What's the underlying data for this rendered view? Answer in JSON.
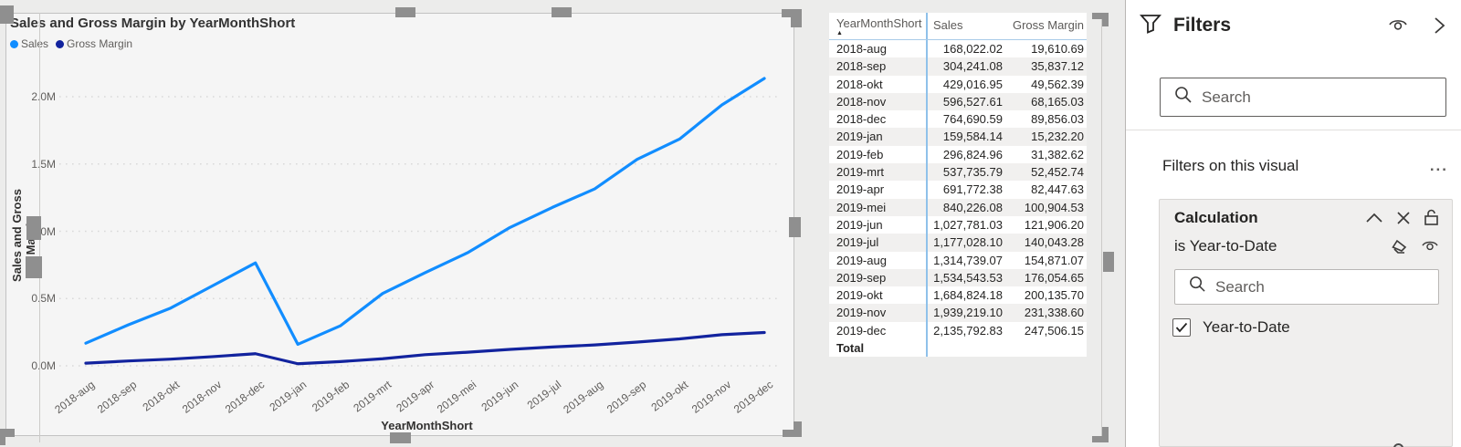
{
  "chart": {
    "title": "Sales and Gross Margin by YearMonthShort",
    "y_axis_title": "Sales and Gross Margin",
    "x_axis_title": "YearMonthShort",
    "y_ticks": [
      "0.0M",
      "0.5M",
      "1.0M",
      "1.5M",
      "2.0M"
    ]
  },
  "chart_data": {
    "type": "line",
    "title": "Sales and Gross Margin by YearMonthShort",
    "xlabel": "YearMonthShort",
    "ylabel": "Sales and Gross Margin",
    "categories": [
      "2018-aug",
      "2018-sep",
      "2018-okt",
      "2018-nov",
      "2018-dec",
      "2019-jan",
      "2019-feb",
      "2019-mrt",
      "2019-apr",
      "2019-mei",
      "2019-jun",
      "2019-jul",
      "2019-aug",
      "2019-sep",
      "2019-okt",
      "2019-nov",
      "2019-dec"
    ],
    "series": [
      {
        "name": "Sales",
        "color": "#118DFF",
        "values": [
          168022.02,
          304241.08,
          429016.95,
          596527.61,
          764690.59,
          159584.14,
          296824.96,
          537735.79,
          691772.38,
          840226.08,
          1027781.03,
          1177028.1,
          1314739.07,
          1534543.53,
          1684824.18,
          1939219.1,
          2135792.83
        ]
      },
      {
        "name": "Gross Margin",
        "color": "#12239E",
        "values": [
          19610.69,
          35837.12,
          49562.39,
          68165.03,
          89856.03,
          15232.2,
          31382.62,
          52452.74,
          82447.63,
          100904.53,
          121906.2,
          140043.28,
          154871.07,
          176054.65,
          200135.7,
          231338.6,
          247506.15
        ]
      }
    ],
    "ylim": [
      0,
      2200000
    ],
    "y_gridlines": [
      0,
      500000,
      1000000,
      1500000,
      2000000
    ],
    "grid": "dotted-horizontal",
    "legend_position": "top-left"
  },
  "table": {
    "columns": [
      "YearMonthShort",
      "Sales",
      "Gross Margin"
    ],
    "sort": {
      "column": "YearMonthShort",
      "direction": "ascending",
      "glyph": "▲"
    },
    "rows": [
      [
        "2018-aug",
        "168,022.02",
        "19,610.69"
      ],
      [
        "2018-sep",
        "304,241.08",
        "35,837.12"
      ],
      [
        "2018-okt",
        "429,016.95",
        "49,562.39"
      ],
      [
        "2018-nov",
        "596,527.61",
        "68,165.03"
      ],
      [
        "2018-dec",
        "764,690.59",
        "89,856.03"
      ],
      [
        "2019-jan",
        "159,584.14",
        "15,232.20"
      ],
      [
        "2019-feb",
        "296,824.96",
        "31,382.62"
      ],
      [
        "2019-mrt",
        "537,735.79",
        "52,452.74"
      ],
      [
        "2019-apr",
        "691,772.38",
        "82,447.63"
      ],
      [
        "2019-mei",
        "840,226.08",
        "100,904.53"
      ],
      [
        "2019-jun",
        "1,027,781.03",
        "121,906.20"
      ],
      [
        "2019-jul",
        "1,177,028.10",
        "140,043.28"
      ],
      [
        "2019-aug",
        "1,314,739.07",
        "154,871.07"
      ],
      [
        "2019-sep",
        "1,534,543.53",
        "176,054.65"
      ],
      [
        "2019-okt",
        "1,684,824.18",
        "200,135.70"
      ],
      [
        "2019-nov",
        "1,939,219.10",
        "231,338.60"
      ],
      [
        "2019-dec",
        "2,135,792.83",
        "247,506.15"
      ]
    ],
    "total_row": {
      "label": "Total",
      "sales": "",
      "gross_margin": ""
    }
  },
  "filters_pane": {
    "title": "Filters",
    "search_placeholder": "Search",
    "section_title": "Filters on this visual",
    "more_options_glyph": "...",
    "card": {
      "field": "Calculation",
      "condition": "is Year-to-Date",
      "search_placeholder": "Search",
      "options": [
        {
          "label": "Year-to-Date",
          "checked": true
        }
      ]
    }
  },
  "colors": {
    "sales": "#118DFF",
    "gross_margin": "#12239E",
    "visual_background": "#f5f5f5",
    "canvas_background": "#ececeb"
  }
}
